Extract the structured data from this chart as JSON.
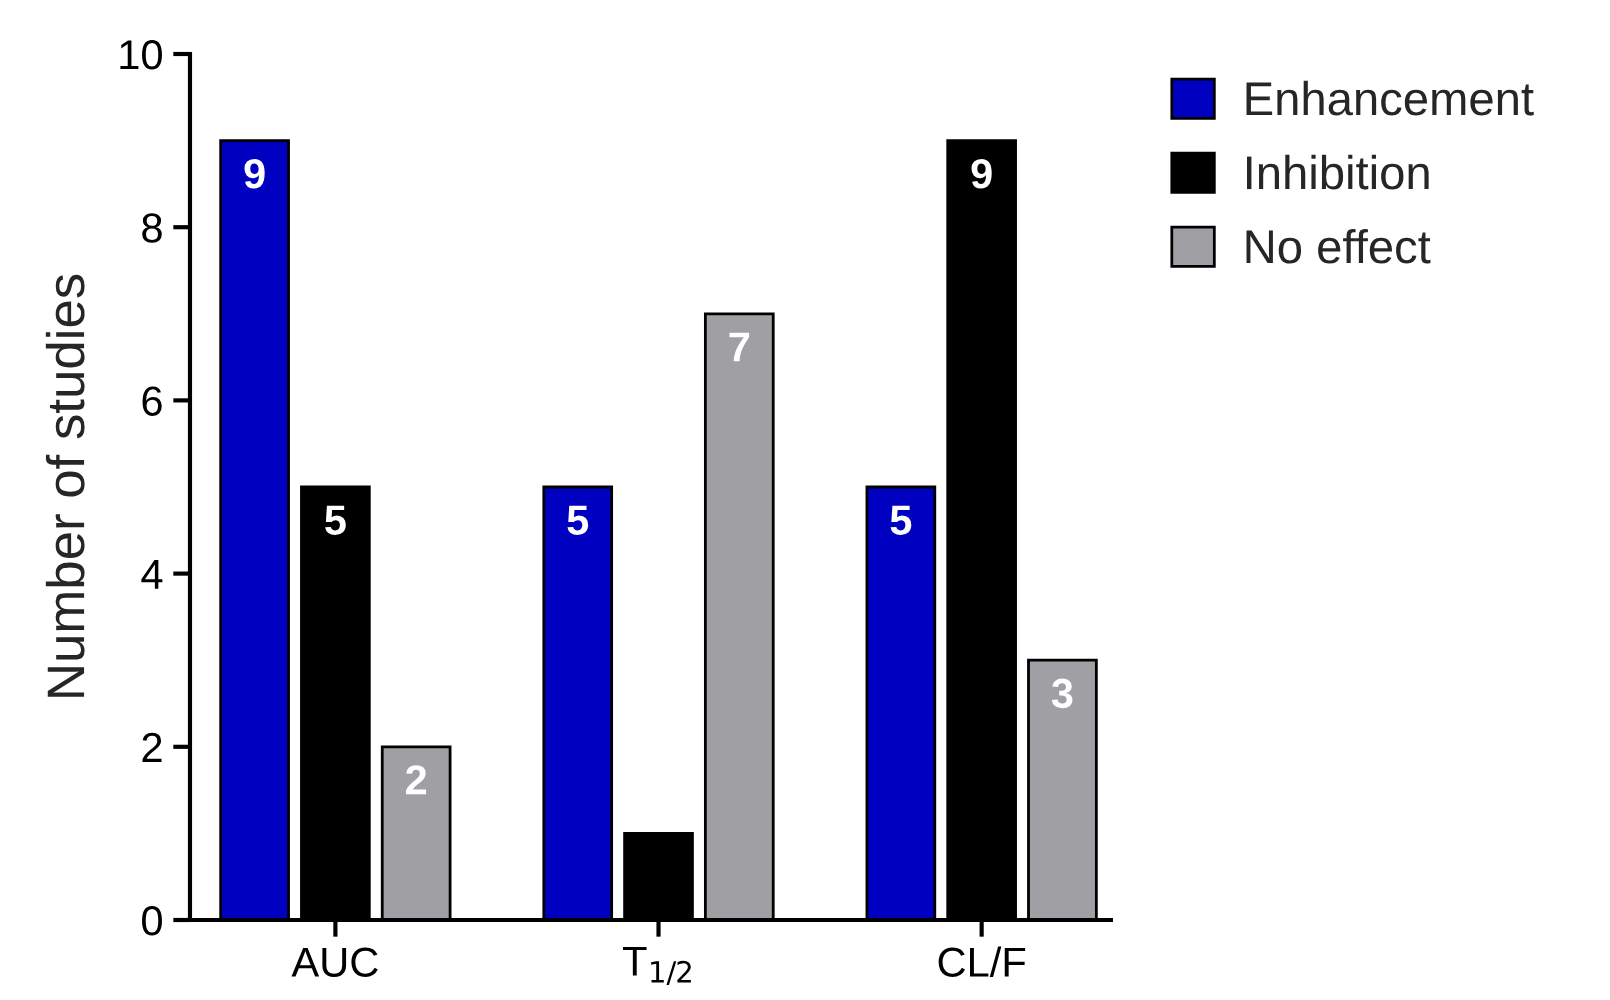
{
  "chart_data": {
    "type": "bar",
    "ylabel": "Number of studies",
    "categories": [
      "AUC",
      "T$_{1/2}$",
      "CL/F"
    ],
    "series": [
      {
        "name": "Enhancement",
        "color": "#0000c0",
        "values": [
          9,
          5,
          5
        ],
        "value_labels": [
          "9",
          "5",
          "5"
        ]
      },
      {
        "name": "Inhibition",
        "color": "#000000",
        "values": [
          5,
          1,
          9
        ],
        "value_labels": [
          "5",
          null,
          "9"
        ]
      },
      {
        "name": "No effect",
        "color": "#a0a0a4",
        "values": [
          2,
          7,
          3
        ],
        "value_labels": [
          "2",
          "7",
          "3"
        ]
      }
    ],
    "ylim": [
      0,
      10
    ],
    "yticks": [
      0,
      2,
      4,
      6,
      8,
      10
    ],
    "grid": false,
    "legend": "top right"
  }
}
